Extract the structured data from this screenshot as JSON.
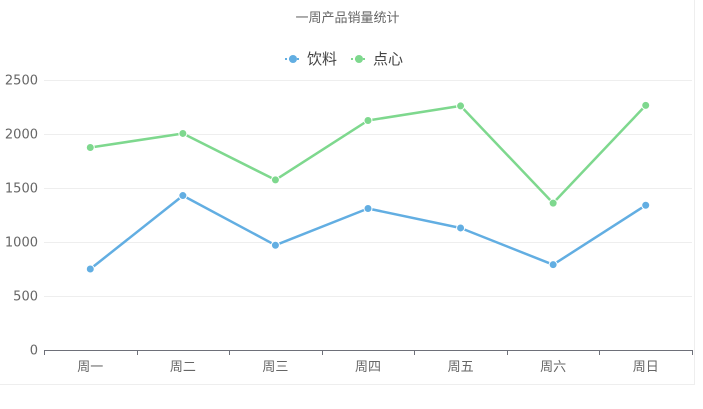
{
  "chart_data": {
    "type": "line",
    "title": "一周产品销量统计",
    "categories": [
      "周一",
      "周二",
      "周三",
      "周四",
      "周五",
      "周六",
      "周日"
    ],
    "series": [
      {
        "name": "饮料",
        "color": "#62aee2",
        "values": [
          750,
          1430,
          970,
          1310,
          1130,
          790,
          1340
        ]
      },
      {
        "name": "点心",
        "color": "#7ed88e",
        "values": [
          1875,
          2005,
          1575,
          2125,
          2260,
          1360,
          2265
        ]
      }
    ],
    "ylim": [
      0,
      2500
    ],
    "yticks": [
      0,
      500,
      1000,
      1500,
      2000,
      2500
    ],
    "grid": true,
    "legend": "top-center",
    "xlabel": "",
    "ylabel": ""
  }
}
